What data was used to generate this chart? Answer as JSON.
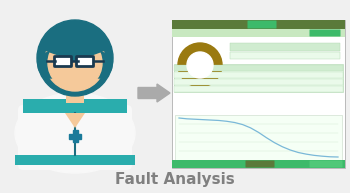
{
  "bg_color": "#f0f0f0",
  "title_text": "Fault Analysis",
  "title_color": "#808080",
  "title_fontsize": 11,
  "skin_color": "#f5c99a",
  "hair_color": "#1a6e80",
  "shirt_color": "#f8f8f8",
  "collar_color": "#2aadad",
  "shirt_line_color": "#1a6e80",
  "glasses_color": "#1a3a50",
  "cross_color": "#1a7a9a",
  "screen_bg": "#ffffff",
  "screen_border": "#b0b0b0",
  "screen_header_dark": "#5a7a3a",
  "screen_header_color": "#3dba6a",
  "screen_subheader": "#c8e8c0",
  "donut_color": "#9a7a10",
  "arrow_color": "#aaaaaa",
  "chart_line_color": "#7ab8d8",
  "chart_bg": "#f5fff5",
  "table_header_bg": "#d0ecd0",
  "table_row_bg": "#eafaea",
  "table_border": "#b0d8b0",
  "bottom_bar_color": "#3dba6a",
  "iv_curve_x": [
    0,
    0.5,
    1,
    2,
    3,
    4,
    5,
    6,
    7,
    8,
    9,
    10,
    11,
    12,
    13,
    14,
    15,
    16,
    17,
    18,
    19,
    20
  ],
  "iv_curve_y": [
    9.5,
    9.4,
    9.3,
    9.2,
    9.1,
    9.0,
    8.9,
    8.7,
    8.4,
    7.9,
    7.1,
    6.0,
    4.7,
    3.5,
    2.5,
    1.7,
    1.1,
    0.7,
    0.4,
    0.2,
    0.05,
    0.0
  ]
}
